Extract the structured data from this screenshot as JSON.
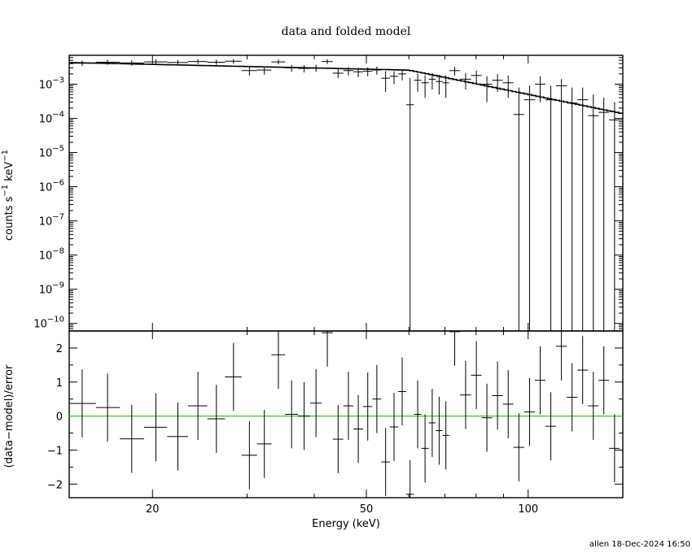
{
  "title": "data and folded model",
  "footer": "allen 18-Dec-2024 16:50",
  "chart_data": [
    {
      "type": "scatter",
      "panel": "top",
      "ylabel": "counts s$^{-1}$ keV$^{-1}$",
      "ylabel_parts": {
        "base": "counts s",
        "sup1": "−1",
        "mid": " keV",
        "sup2": "−1"
      },
      "yscale": "log",
      "xscale": "log",
      "xlim": [
        14,
        150
      ],
      "ylim": [
        6e-11,
        0.007
      ],
      "yticks": [
        {
          "value": 0.001,
          "mant": "10",
          "exp": "−3"
        },
        {
          "value": 0.0001,
          "mant": "10",
          "exp": "−4"
        },
        {
          "value": 1e-05,
          "mant": "10",
          "exp": "−5"
        },
        {
          "value": 1e-06,
          "mant": "10",
          "exp": "−6"
        },
        {
          "value": 1e-07,
          "mant": "10",
          "exp": "−7"
        },
        {
          "value": 1e-08,
          "mant": "10",
          "exp": "−8"
        },
        {
          "value": 1e-09,
          "mant": "10",
          "exp": "−9"
        },
        {
          "value": 1e-10,
          "mant": "10",
          "exp": "−10"
        }
      ],
      "series": [
        {
          "type": "errorbar",
          "points": [
            {
              "x": 14.8,
              "xlo": 14,
              "xhi": 15.7,
              "y": 0.0041,
              "ylo": 0.0034,
              "yhi": 0.0049
            },
            {
              "x": 16.5,
              "xlo": 15.7,
              "xhi": 17.4,
              "y": 0.0044,
              "ylo": 0.0037,
              "yhi": 0.0052
            },
            {
              "x": 18.3,
              "xlo": 17.4,
              "xhi": 19.3,
              "y": 0.0042,
              "ylo": 0.0035,
              "yhi": 0.005
            },
            {
              "x": 20.3,
              "xlo": 19.3,
              "xhi": 21.3,
              "y": 0.0045,
              "ylo": 0.0038,
              "yhi": 0.0053
            },
            {
              "x": 22.3,
              "xlo": 21.3,
              "xhi": 23.3,
              "y": 0.0043,
              "ylo": 0.0036,
              "yhi": 0.0051
            },
            {
              "x": 24.3,
              "xlo": 23.3,
              "xhi": 25.3,
              "y": 0.0046,
              "ylo": 0.0039,
              "yhi": 0.0054
            },
            {
              "x": 26.3,
              "xlo": 25.3,
              "xhi": 27.3,
              "y": 0.0044,
              "ylo": 0.0037,
              "yhi": 0.0052
            },
            {
              "x": 28.3,
              "xlo": 27.3,
              "xhi": 29.3,
              "y": 0.0047,
              "ylo": 0.004,
              "yhi": 0.0055
            },
            {
              "x": 30.3,
              "xlo": 29.3,
              "xhi": 31.3,
              "y": 0.0025,
              "ylo": 0.0018,
              "yhi": 0.0032
            },
            {
              "x": 32.3,
              "xlo": 31.3,
              "xhi": 33.3,
              "y": 0.0026,
              "ylo": 0.0019,
              "yhi": 0.0033
            },
            {
              "x": 34.3,
              "xlo": 33.3,
              "xhi": 35.3,
              "y": 0.0045,
              "ylo": 0.0038,
              "yhi": 0.0053
            },
            {
              "x": 36.3,
              "xlo": 35.3,
              "xhi": 37.3,
              "y": 0.003,
              "ylo": 0.0023,
              "yhi": 0.0037
            },
            {
              "x": 38.3,
              "xlo": 37.3,
              "xhi": 39.3,
              "y": 0.0029,
              "ylo": 0.0022,
              "yhi": 0.0036
            },
            {
              "x": 40.3,
              "xlo": 39.3,
              "xhi": 41.3,
              "y": 0.003,
              "ylo": 0.0023,
              "yhi": 0.0037
            },
            {
              "x": 42.3,
              "xlo": 41.3,
              "xhi": 43.3,
              "y": 0.0046,
              "ylo": 0.0039,
              "yhi": 0.0054
            },
            {
              "x": 44.3,
              "xlo": 43.3,
              "xhi": 45.3,
              "y": 0.0021,
              "ylo": 0.0015,
              "yhi": 0.0028
            },
            {
              "x": 46.3,
              "xlo": 45.3,
              "xhi": 47.3,
              "y": 0.0025,
              "ylo": 0.0018,
              "yhi": 0.0032
            },
            {
              "x": 48.3,
              "xlo": 47.3,
              "xhi": 49.3,
              "y": 0.0023,
              "ylo": 0.0016,
              "yhi": 0.003
            },
            {
              "x": 50.3,
              "xlo": 49.3,
              "xhi": 51.3,
              "y": 0.0024,
              "ylo": 0.0017,
              "yhi": 0.0031
            },
            {
              "x": 52.3,
              "xlo": 51.3,
              "xhi": 53.3,
              "y": 0.0026,
              "ylo": 0.0019,
              "yhi": 0.0033
            },
            {
              "x": 54.3,
              "xlo": 53.3,
              "xhi": 55.3,
              "y": 0.0015,
              "ylo": 0.0006,
              "yhi": 0.0024
            },
            {
              "x": 56.3,
              "xlo": 55.3,
              "xhi": 57.3,
              "y": 0.0017,
              "ylo": 0.001,
              "yhi": 0.0024
            },
            {
              "x": 58.3,
              "xlo": 57.3,
              "xhi": 59.3,
              "y": 0.002,
              "ylo": 0.0013,
              "yhi": 0.0027
            },
            {
              "x": 60.3,
              "xlo": 59.3,
              "xhi": 61.3,
              "y": 0.00025,
              "ylo": 6e-11,
              "yhi": 0.0015
            },
            {
              "x": 62.3,
              "xlo": 61.3,
              "xhi": 63.3,
              "y": 0.0013,
              "ylo": 0.0006,
              "yhi": 0.002
            },
            {
              "x": 64.3,
              "xlo": 63.3,
              "xhi": 65.3,
              "y": 0.0011,
              "ylo": 0.0004,
              "yhi": 0.0018
            },
            {
              "x": 66.3,
              "xlo": 65.3,
              "xhi": 67.3,
              "y": 0.0014,
              "ylo": 0.0007,
              "yhi": 0.0021
            },
            {
              "x": 68.3,
              "xlo": 67.3,
              "xhi": 69.3,
              "y": 0.0012,
              "ylo": 0.0005,
              "yhi": 0.0019
            },
            {
              "x": 70.3,
              "xlo": 69.3,
              "xhi": 71.3,
              "y": 0.0011,
              "ylo": 0.0004,
              "yhi": 0.0018
            },
            {
              "x": 73.0,
              "xlo": 71.3,
              "xhi": 74.7,
              "y": 0.0025,
              "ylo": 0.0018,
              "yhi": 0.0032
            },
            {
              "x": 76.5,
              "xlo": 74.7,
              "xhi": 78.3,
              "y": 0.0014,
              "ylo": 0.0007,
              "yhi": 0.0021
            },
            {
              "x": 80.1,
              "xlo": 78.3,
              "xhi": 81.9,
              "y": 0.0018,
              "ylo": 0.0011,
              "yhi": 0.0025
            },
            {
              "x": 83.8,
              "xlo": 81.9,
              "xhi": 85.7,
              "y": 0.001,
              "ylo": 0.0003,
              "yhi": 0.0017
            },
            {
              "x": 87.7,
              "xlo": 85.7,
              "xhi": 89.7,
              "y": 0.0013,
              "ylo": 0.0006,
              "yhi": 0.002
            },
            {
              "x": 91.8,
              "xlo": 89.7,
              "xhi": 93.9,
              "y": 0.0011,
              "ylo": 0.0004,
              "yhi": 0.0018
            },
            {
              "x": 96.1,
              "xlo": 93.9,
              "xhi": 98.3,
              "y": 0.00013,
              "ylo": 6e-11,
              "yhi": 0.0008
            },
            {
              "x": 100.6,
              "xlo": 98.3,
              "xhi": 102.9,
              "y": 0.00035,
              "ylo": 6e-11,
              "yhi": 0.0009
            },
            {
              "x": 105.3,
              "xlo": 102.9,
              "xhi": 107.7,
              "y": 0.001,
              "ylo": 0.0003,
              "yhi": 0.0017
            },
            {
              "x": 110.2,
              "xlo": 107.7,
              "xhi": 112.7,
              "y": 0.00035,
              "ylo": 6e-11,
              "yhi": 0.0009
            },
            {
              "x": 115.3,
              "xlo": 112.7,
              "xhi": 118.0,
              "y": 0.0009,
              "ylo": 6e-11,
              "yhi": 0.0014
            },
            {
              "x": 120.7,
              "xlo": 118.0,
              "xhi": 123.5,
              "y": 0.00028,
              "ylo": 6e-11,
              "yhi": 0.0008
            },
            {
              "x": 126.3,
              "xlo": 123.5,
              "xhi": 129.2,
              "y": 0.00035,
              "ylo": 6e-11,
              "yhi": 0.0008
            },
            {
              "x": 132.2,
              "xlo": 129.2,
              "xhi": 135.2,
              "y": 0.00012,
              "ylo": 6e-11,
              "yhi": 0.0005
            },
            {
              "x": 138.3,
              "xlo": 135.2,
              "xhi": 141.5,
              "y": 0.00015,
              "ylo": 6e-11,
              "yhi": 0.0004
            },
            {
              "x": 144.8,
              "xlo": 141.5,
              "xhi": 148.0,
              "y": 9e-05,
              "ylo": 6e-11,
              "yhi": 0.0003
            }
          ]
        },
        {
          "type": "model-step",
          "norm": 0.0043,
          "break": 60,
          "index": 3.2,
          "lowslope": 0.35
        }
      ]
    },
    {
      "type": "scatter",
      "panel": "bottom",
      "ylabel": "(data−model)/error",
      "xlabel": "Energy (keV)",
      "xscale": "log",
      "xlim": [
        14,
        150
      ],
      "ylim": [
        -2.4,
        2.5
      ],
      "yticks": [
        2,
        1,
        0,
        -1,
        -2
      ],
      "ytick_labels": [
        "2",
        "1",
        "0",
        "−1",
        "−2"
      ],
      "xticks": [
        20,
        50,
        100
      ],
      "xtick_labels": [
        "20",
        "50",
        "100"
      ],
      "zero_line_color": "#32cd32",
      "series": [
        {
          "type": "errorbar",
          "points": [
            {
              "x": 14.8,
              "xlo": 14,
              "xhi": 15.7,
              "y": 0.37
            },
            {
              "x": 16.5,
              "xlo": 15.7,
              "xhi": 17.4,
              "y": 0.25
            },
            {
              "x": 18.3,
              "xlo": 17.4,
              "xhi": 19.3,
              "y": -0.67
            },
            {
              "x": 20.3,
              "xlo": 19.3,
              "xhi": 21.3,
              "y": -0.33
            },
            {
              "x": 22.3,
              "xlo": 21.3,
              "xhi": 23.3,
              "y": -0.6
            },
            {
              "x": 24.3,
              "xlo": 23.3,
              "xhi": 25.3,
              "y": 0.3
            },
            {
              "x": 26.3,
              "xlo": 25.3,
              "xhi": 27.3,
              "y": -0.08
            },
            {
              "x": 28.3,
              "xlo": 27.3,
              "xhi": 29.3,
              "y": 1.15
            },
            {
              "x": 30.3,
              "xlo": 29.3,
              "xhi": 31.3,
              "y": -1.15
            },
            {
              "x": 32.3,
              "xlo": 31.3,
              "xhi": 33.3,
              "y": -0.82
            },
            {
              "x": 34.3,
              "xlo": 33.3,
              "xhi": 35.3,
              "y": 1.8
            },
            {
              "x": 36.3,
              "xlo": 35.3,
              "xhi": 37.3,
              "y": 0.05
            },
            {
              "x": 38.3,
              "xlo": 37.3,
              "xhi": 39.3,
              "y": 0.0
            },
            {
              "x": 40.3,
              "xlo": 39.3,
              "xhi": 41.3,
              "y": 0.38
            },
            {
              "x": 42.3,
              "xlo": 41.3,
              "xhi": 43.3,
              "y": 2.45
            },
            {
              "x": 44.3,
              "xlo": 43.3,
              "xhi": 45.3,
              "y": -0.68
            },
            {
              "x": 46.3,
              "xlo": 45.3,
              "xhi": 47.3,
              "y": 0.3
            },
            {
              "x": 48.3,
              "xlo": 47.3,
              "xhi": 49.3,
              "y": -0.38
            },
            {
              "x": 50.3,
              "xlo": 49.3,
              "xhi": 51.3,
              "y": 0.28
            },
            {
              "x": 52.3,
              "xlo": 51.3,
              "xhi": 53.3,
              "y": 0.5
            },
            {
              "x": 54.3,
              "xlo": 53.3,
              "xhi": 55.3,
              "y": -1.35
            },
            {
              "x": 56.3,
              "xlo": 55.3,
              "xhi": 57.3,
              "y": -0.32
            },
            {
              "x": 58.3,
              "xlo": 57.3,
              "xhi": 59.3,
              "y": 0.72
            },
            {
              "x": 60.3,
              "xlo": 59.3,
              "xhi": 61.3,
              "y": -2.3
            },
            {
              "x": 62.3,
              "xlo": 61.3,
              "xhi": 63.3,
              "y": 0.05
            },
            {
              "x": 64.3,
              "xlo": 63.3,
              "xhi": 65.3,
              "y": -0.95
            },
            {
              "x": 66.3,
              "xlo": 65.3,
              "xhi": 67.3,
              "y": -0.2
            },
            {
              "x": 68.3,
              "xlo": 67.3,
              "xhi": 69.3,
              "y": -0.43
            },
            {
              "x": 70.3,
              "xlo": 69.3,
              "xhi": 71.3,
              "y": -0.57
            },
            {
              "x": 73.0,
              "xlo": 71.3,
              "xhi": 74.7,
              "y": 2.48
            },
            {
              "x": 76.5,
              "xlo": 74.7,
              "xhi": 78.3,
              "y": 0.62
            },
            {
              "x": 80.1,
              "xlo": 78.3,
              "xhi": 81.9,
              "y": 1.2
            },
            {
              "x": 83.8,
              "xlo": 81.9,
              "xhi": 85.7,
              "y": -0.05
            },
            {
              "x": 87.7,
              "xlo": 85.7,
              "xhi": 89.7,
              "y": 0.6
            },
            {
              "x": 91.8,
              "xlo": 89.7,
              "xhi": 93.9,
              "y": 0.35
            },
            {
              "x": 96.1,
              "xlo": 93.9,
              "xhi": 98.3,
              "y": -0.92
            },
            {
              "x": 100.6,
              "xlo": 98.3,
              "xhi": 102.9,
              "y": 0.12
            },
            {
              "x": 105.3,
              "xlo": 102.9,
              "xhi": 107.7,
              "y": 1.05
            },
            {
              "x": 110.2,
              "xlo": 107.7,
              "xhi": 112.7,
              "y": -0.3
            },
            {
              "x": 115.3,
              "xlo": 112.7,
              "xhi": 118.0,
              "y": 2.05
            },
            {
              "x": 120.7,
              "xlo": 118.0,
              "xhi": 123.5,
              "y": 0.55
            },
            {
              "x": 126.3,
              "xlo": 123.5,
              "xhi": 129.2,
              "y": 1.35
            },
            {
              "x": 132.2,
              "xlo": 129.2,
              "xhi": 135.2,
              "y": 0.3
            },
            {
              "x": 138.3,
              "xlo": 135.2,
              "xhi": 141.5,
              "y": 1.05
            },
            {
              "x": 144.8,
              "xlo": 141.5,
              "xhi": 148.0,
              "y": -0.95
            }
          ]
        }
      ]
    }
  ]
}
